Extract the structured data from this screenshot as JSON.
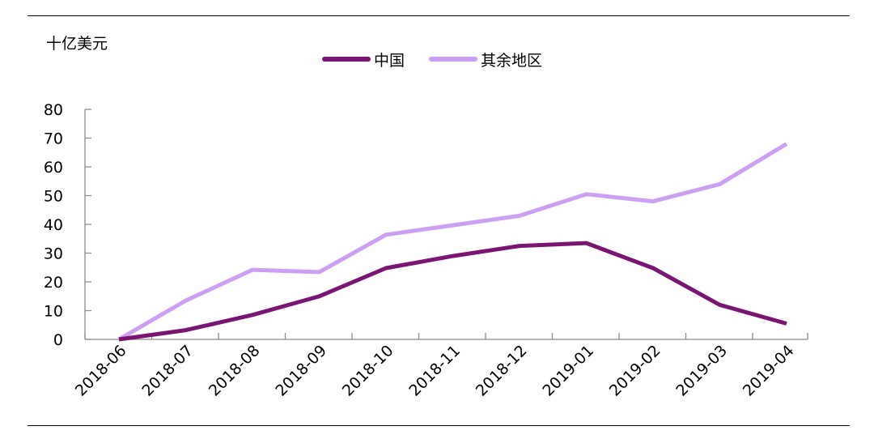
{
  "unit_label": "十亿美元",
  "chart_data": {
    "type": "line",
    "title": "",
    "xlabel": "",
    "ylabel": "十亿美元",
    "categories": [
      "2018-06",
      "2018-07",
      "2018-08",
      "2018-09",
      "2018-10",
      "2018-11",
      "2018-12",
      "2019-01",
      "2019-02",
      "2019-03",
      "2019-04"
    ],
    "ylim": [
      0,
      80
    ],
    "yticks": [
      0,
      10,
      20,
      30,
      40,
      50,
      60,
      70,
      80
    ],
    "grid": false,
    "legend": "top-center",
    "series": [
      {
        "name": "中国",
        "color": "#7b1474",
        "values": [
          0,
          3.2,
          8.5,
          15,
          24.8,
          29,
          32.5,
          33.5,
          24.8,
          12,
          5.5
        ]
      },
      {
        "name": "其余地区",
        "color": "#cc9ef4",
        "values": [
          0,
          13.5,
          24.2,
          23.4,
          36.4,
          39.7,
          43,
          50.5,
          48,
          54,
          68
        ]
      }
    ]
  }
}
